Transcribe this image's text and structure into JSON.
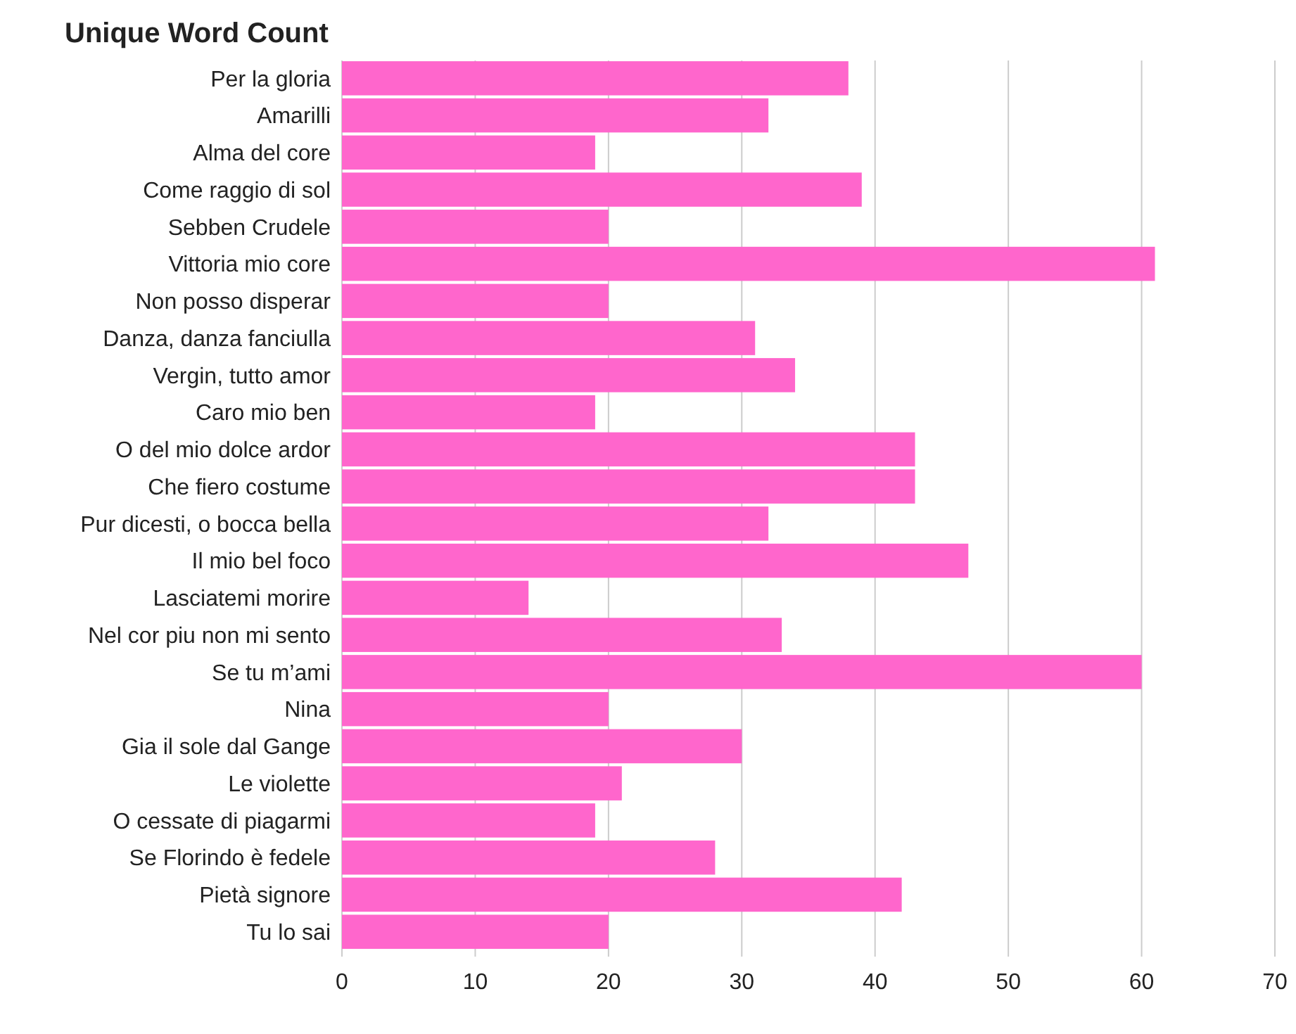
{
  "chart_data": {
    "type": "bar",
    "orientation": "horizontal",
    "title": "Unique Word Count",
    "categories": [
      "Per la gloria",
      "Amarilli",
      "Alma del core",
      "Come raggio di sol",
      "Sebben Crudele",
      "Vittoria mio core",
      "Non posso disperar",
      "Danza, danza fanciulla",
      "Vergin, tutto amor",
      "Caro mio ben",
      "O del mio dolce ardor",
      "Che fiero costume",
      "Pur dicesti, o bocca bella",
      "Il mio bel foco",
      "Lasciatemi morire",
      "Nel cor piu non mi sento",
      "Se tu m’ami",
      "Nina",
      "Gia il sole dal Gange",
      "Le violette",
      "O cessate di piagarmi",
      "Se Florindo è fedele",
      "Pietà signore",
      "Tu lo sai"
    ],
    "values": [
      38,
      32,
      19,
      39,
      20,
      61,
      20,
      31,
      34,
      19,
      43,
      43,
      32,
      47,
      14,
      33,
      60,
      20,
      30,
      21,
      19,
      28,
      42,
      20
    ],
    "color": "#ff66cc",
    "xlim": [
      0,
      70
    ],
    "xticks": [
      0,
      10,
      20,
      30,
      40,
      50,
      60,
      70
    ],
    "grid": "x"
  }
}
